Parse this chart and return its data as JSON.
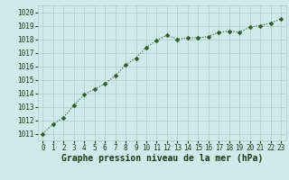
{
  "x": [
    0,
    1,
    2,
    3,
    4,
    5,
    6,
    7,
    8,
    9,
    10,
    11,
    12,
    13,
    14,
    15,
    16,
    17,
    18,
    19,
    20,
    21,
    22,
    23
  ],
  "y": [
    1011.0,
    1011.7,
    1012.2,
    1013.1,
    1013.9,
    1014.3,
    1014.7,
    1015.3,
    1016.1,
    1016.6,
    1017.4,
    1017.9,
    1018.3,
    1018.0,
    1018.1,
    1018.1,
    1018.2,
    1018.5,
    1018.6,
    1018.5,
    1018.9,
    1019.0,
    1019.2,
    1019.5
  ],
  "ylim": [
    1010.5,
    1020.5
  ],
  "xlim": [
    -0.5,
    23.5
  ],
  "yticks": [
    1011,
    1012,
    1013,
    1014,
    1015,
    1016,
    1017,
    1018,
    1019,
    1020
  ],
  "xticks": [
    0,
    1,
    2,
    3,
    4,
    5,
    6,
    7,
    8,
    9,
    10,
    11,
    12,
    13,
    14,
    15,
    16,
    17,
    18,
    19,
    20,
    21,
    22,
    23
  ],
  "line_color": "#2d5a27",
  "marker": "D",
  "marker_size": 2.5,
  "bg_color": "#ceeaea",
  "grid_color": "#b0c8c8",
  "xlabel": "Graphe pression niveau de la mer (hPa)",
  "xlabel_color": "#1a3a14",
  "xlabel_fontsize": 7.0,
  "tick_fontsize": 5.5,
  "tick_color": "#1a3a14",
  "line_width": 0.8
}
